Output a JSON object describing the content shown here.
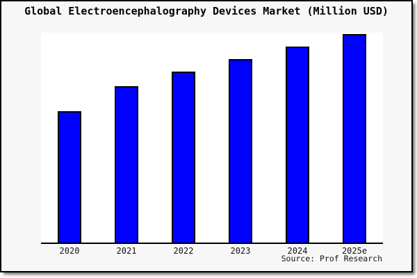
{
  "chart": {
    "title": "Global Electroencephalography Devices Market (Million USD)",
    "source": "Source: Prof Research",
    "colors": {
      "bar_fill": "#0101fe",
      "bar_border": "#000000",
      "panel_background": "#f7f7f7",
      "plot_background": "#ffffff",
      "axis": "#000000",
      "outer_border": "#000000"
    }
  },
  "chart_data": {
    "type": "bar",
    "title": "Global Electroencephalography Devices Market (Million USD)",
    "categories": [
      "2020",
      "2021",
      "2022",
      "2023",
      "2024",
      "2025e"
    ],
    "values": [
      63,
      75,
      82,
      88,
      94,
      100
    ],
    "series_note": "No y-axis scale, gridlines or data labels are shown; values are relative bar heights with 2025e = 100",
    "xlabel": "",
    "ylabel": "",
    "ylim": [
      0,
      101
    ],
    "grid": false,
    "legend": "none",
    "source_caption": "Source: Prof Research"
  }
}
